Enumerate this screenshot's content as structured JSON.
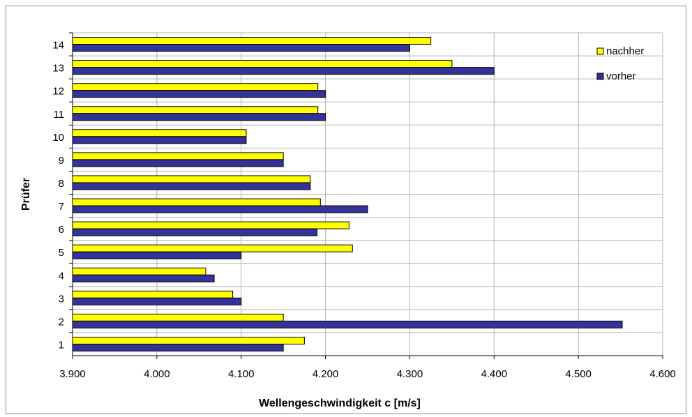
{
  "chart_data": {
    "type": "bar",
    "orientation": "horizontal",
    "categories": [
      "1",
      "2",
      "3",
      "4",
      "5",
      "6",
      "7",
      "8",
      "9",
      "10",
      "11",
      "12",
      "13",
      "14"
    ],
    "series": [
      {
        "name": "nachher",
        "color": "#ffff00",
        "values": [
          4.175,
          4.15,
          4.09,
          4.058,
          4.232,
          4.228,
          4.194,
          4.182,
          4.15,
          4.106,
          4.191,
          4.191,
          4.35,
          4.325
        ]
      },
      {
        "name": "vorher",
        "color": "#333399",
        "values": [
          4.15,
          4.552,
          4.1,
          4.068,
          4.1,
          4.19,
          4.25,
          4.182,
          4.15,
          4.106,
          4.2,
          4.2,
          4.4,
          4.3
        ]
      }
    ],
    "xlabel": "Wellengeschwindigkeit c [m/s]",
    "ylabel": "Prüfer",
    "xlim": [
      3.9,
      4.6
    ],
    "xticks": [
      3.9,
      4.0,
      4.1,
      4.2,
      4.3,
      4.4,
      4.5,
      4.6
    ],
    "xtick_labels": [
      "3.900",
      "4.000",
      "4.100",
      "4.200",
      "4.300",
      "4.400",
      "4.500",
      "4.600"
    ],
    "grid": true,
    "legend_position": "top-right"
  }
}
